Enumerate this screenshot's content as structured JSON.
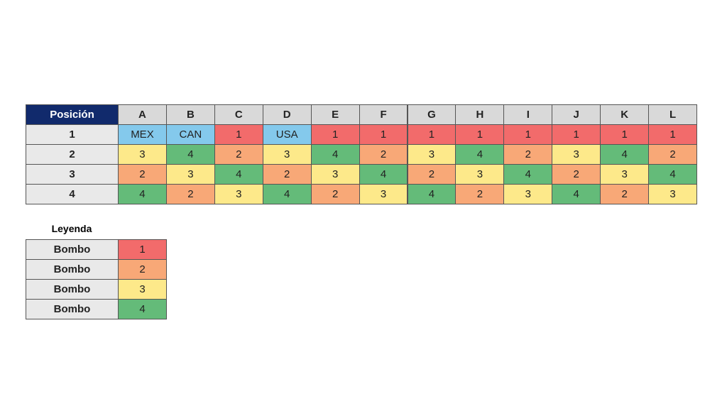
{
  "table": {
    "header": "Posición",
    "columns": [
      "A",
      "B",
      "C",
      "D",
      "E",
      "F",
      "G",
      "H",
      "I",
      "J",
      "K",
      "L"
    ],
    "rows": [
      {
        "label": "1",
        "cells": [
          "MEX",
          "CAN",
          1,
          "USA",
          1,
          1,
          1,
          1,
          1,
          1,
          1,
          1
        ]
      },
      {
        "label": "2",
        "cells": [
          3,
          4,
          2,
          3,
          4,
          2,
          3,
          4,
          2,
          3,
          4,
          2
        ]
      },
      {
        "label": "3",
        "cells": [
          2,
          3,
          4,
          2,
          3,
          4,
          2,
          3,
          4,
          2,
          3,
          4
        ]
      },
      {
        "label": "4",
        "cells": [
          4,
          2,
          3,
          4,
          2,
          3,
          4,
          2,
          3,
          4,
          2,
          3
        ]
      }
    ],
    "host_color": "#84c9ec"
  },
  "legend": {
    "title": "Leyenda",
    "rows": [
      {
        "label": "Bombo",
        "value": 1,
        "color": "#f26b6b"
      },
      {
        "label": "Bombo",
        "value": 2,
        "color": "#f8a877"
      },
      {
        "label": "Bombo",
        "value": 3,
        "color": "#fde98a"
      },
      {
        "label": "Bombo",
        "value": 4,
        "color": "#64bb79"
      }
    ]
  }
}
